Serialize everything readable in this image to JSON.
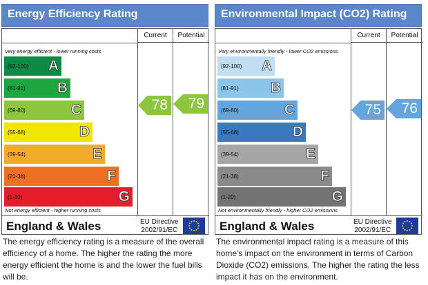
{
  "energy": {
    "title": "Energy Efficiency Rating",
    "col_current": "Current",
    "col_potential": "Potential",
    "top_text": "Very energy efficient - lower running costs",
    "bottom_text": "Not energy efficient - higher running costs",
    "bands": [
      {
        "range": "(92-100)",
        "letter": "A",
        "color": "#0f8a45"
      },
      {
        "range": "(81-91)",
        "letter": "B",
        "color": "#1da63f"
      },
      {
        "range": "(69-80)",
        "letter": "C",
        "color": "#8cc63f"
      },
      {
        "range": "(55-68)",
        "letter": "D",
        "color": "#f2e600"
      },
      {
        "range": "(39-54)",
        "letter": "E",
        "color": "#f4ab2a"
      },
      {
        "range": "(21-38)",
        "letter": "F",
        "color": "#ee6f26"
      },
      {
        "range": "(1-20)",
        "letter": "G",
        "color": "#e51d2a"
      }
    ],
    "current": "78",
    "potential": "79",
    "arrow_color": "#8cc63f",
    "region": "England & Wales",
    "directive": "EU Directive",
    "directive_code": "2002/91/EC",
    "description": "The energy efficiency rating is a measure of the overall efficiency of a home. The higher the rating the more energy efficient the home is and the lower the fuel bills will be."
  },
  "environment": {
    "title": "Environmental Impact (CO2) Rating",
    "col_current": "Current",
    "col_potential": "Potential",
    "top_text": "Very environmentally friendly - lower CO2 emissions",
    "bottom_text": "Not environmentally friendly - higher CO2 emissions",
    "bands": [
      {
        "range": "(92-100)",
        "letter": "A",
        "color": "#c1ddf1"
      },
      {
        "range": "(81-91)",
        "letter": "B",
        "color": "#8cc5ea"
      },
      {
        "range": "(69-80)",
        "letter": "C",
        "color": "#63a5dc"
      },
      {
        "range": "(55-68)",
        "letter": "D",
        "color": "#3b78c2"
      },
      {
        "range": "(39-54)",
        "letter": "E",
        "color": "#a6a6a6"
      },
      {
        "range": "(21-38)",
        "letter": "F",
        "color": "#8a8a8a"
      },
      {
        "range": "(1-20)",
        "letter": "G",
        "color": "#737373"
      }
    ],
    "current": "75",
    "potential": "76",
    "arrow_color": "#63a5dc",
    "region": "England & Wales",
    "directive": "EU Directive",
    "directive_code": "2002/91/EC",
    "description": "The environmental impact rating is a measure of this home's impact on the environment in terms of Carbon Dioxide (CO2) emissions. The higher the rating the less impact it has on the environment."
  }
}
